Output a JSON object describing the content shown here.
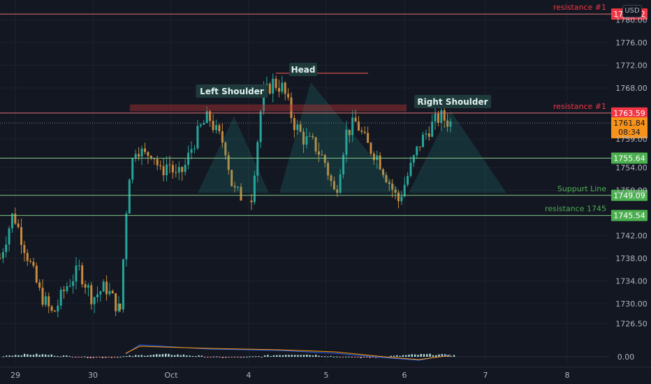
{
  "currency_button": "USD",
  "annotations": {
    "head": "Head",
    "left_shoulder": "Left Shoulder",
    "right_shoulder": "Right Shoulder"
  },
  "levels": [
    {
      "key": "res_top",
      "label": "resistance #1",
      "price": 1781.02,
      "tag": "1781.02",
      "color": "#f23645",
      "line": "#e57373"
    },
    {
      "key": "res_neck",
      "label": "resistance #1",
      "price": 1763.59,
      "tag": "1763.59",
      "color": "#f23645",
      "line": "#e57373"
    },
    {
      "key": "sup_1755",
      "label": "",
      "price": 1755.64,
      "tag": "1755.64",
      "color": "#4caf50",
      "line": "#81c784"
    },
    {
      "key": "sup_line",
      "label": "Suppurt Line",
      "price": 1749.09,
      "tag": "1749.09",
      "color": "#4caf50",
      "line": "#81c784"
    },
    {
      "key": "res_1745",
      "label": "resistance 1745",
      "price": 1745.54,
      "tag": "1745.54",
      "color": "#4caf50",
      "line": "#81c784"
    }
  ],
  "current_price": {
    "price": 1761.84,
    "tag": "1761.84",
    "countdown": "08:34",
    "color": "#f7931a"
  },
  "chart_data": {
    "type": "candlestick",
    "price_axis": {
      "ticks": [
        1780.0,
        1776.0,
        1772.0,
        1768.0,
        1759.0,
        1754.0,
        1750.0,
        1742.0,
        1738.0,
        1734.0,
        1730.0,
        1726.5
      ],
      "tick_labels": [
        "1780.00",
        "1776.00",
        "1772.00",
        "1768.00",
        "1759.00",
        "1754.00",
        "1750.00",
        "1742.00",
        "1738.00",
        "1734.00",
        "1730.00",
        "1726.50"
      ],
      "range": [
        1722.0,
        1783.5
      ]
    },
    "time_axis": {
      "labels": [
        "29",
        "30",
        "Oct",
        "4",
        "5",
        "6",
        "7",
        "8"
      ]
    },
    "oscillator": {
      "tick_label": "0.00"
    },
    "candles_segments": [
      {
        "range_start_label": "29",
        "path": [
          1738,
          1746,
          1739,
          1732,
          1728,
          1733,
          1736,
          1731,
          1733,
          1729
        ]
      },
      {
        "range_start_label": "30",
        "path": [
          1729,
          1752,
          1758,
          1756,
          1757,
          1753,
          1755,
          1752,
          1754,
          1758,
          1761,
          1763,
          1760,
          1758,
          1750,
          1749
        ]
      },
      {
        "range_start_label": "4",
        "path": [
          1749,
          1766,
          1769,
          1768,
          1762,
          1759,
          1758,
          1755,
          1749,
          1760,
          1762,
          1758,
          1756,
          1752,
          1748,
          1753,
          1758,
          1761,
          1763,
          1761.84
        ]
      }
    ],
    "pattern": [
      "Left Shoulder",
      "Head",
      "Right Shoulder"
    ]
  }
}
